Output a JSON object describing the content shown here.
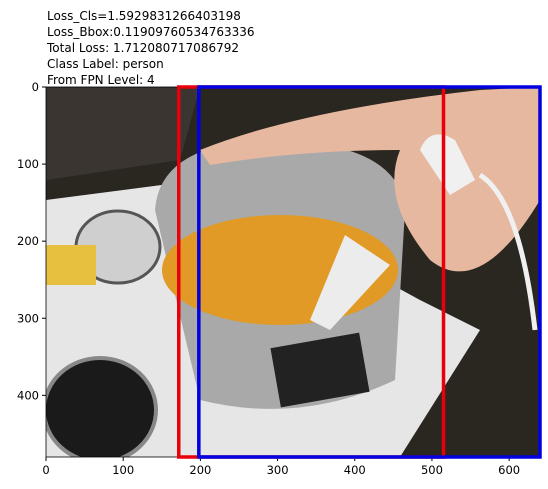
{
  "chart_data": {
    "type": "image",
    "title_lines": [
      "Loss_Cls=1.5929831266403198",
      "Loss_Bbox:0.11909760534763336",
      "Total Loss: 1.712080717086792",
      "Class Label: person",
      "From FPN Level: 4"
    ],
    "xlim": [
      0,
      640
    ],
    "ylim": [
      480,
      0
    ],
    "xticks": [
      0,
      100,
      200,
      300,
      400,
      500,
      600
    ],
    "yticks": [
      0,
      100,
      200,
      300,
      400
    ],
    "boxes": [
      {
        "color": "#e8000b",
        "x": [
          172,
          515
        ],
        "y": [
          0,
          480
        ]
      },
      {
        "color": "#0000e0",
        "x": [
          198,
          640
        ],
        "y": [
          0,
          480
        ]
      }
    ]
  }
}
